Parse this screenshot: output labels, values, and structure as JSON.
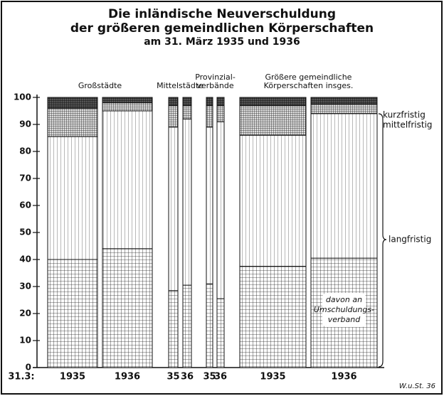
{
  "chart_data": {
    "type": "stacked_bar",
    "title": [
      "Die inländische Neuverschuldung",
      "der größeren gemeindlichen Körperschaften",
      "am 31. März 1935 und 1936"
    ],
    "x_prefix": "31.3:",
    "groups": [
      {
        "label": [
          "Großstädte"
        ],
        "categories": [
          "1935",
          "1936"
        ]
      },
      {
        "label": [
          "Mittelstädte"
        ],
        "categories": [
          "35",
          "36"
        ]
      },
      {
        "label": [
          "Provinzial-",
          "verbände"
        ],
        "categories": [
          "35",
          "36"
        ]
      },
      {
        "label": [
          "Größere gemeindliche",
          "Körperschaften insges."
        ],
        "categories": [
          "1935",
          "1936"
        ]
      }
    ],
    "series": [
      {
        "pattern": "grid",
        "values": [
          40,
          44,
          28.5,
          30.5,
          31,
          25.5,
          37.5,
          40.5
        ]
      },
      {
        "name": "langfristig",
        "pattern": "vertical",
        "values": [
          45.5,
          51,
          60.5,
          61.5,
          58,
          65.5,
          48.5,
          53.5
        ]
      },
      {
        "name": "mittelfristig",
        "pattern": "cross",
        "values": [
          10.5,
          3,
          8,
          5,
          8,
          6,
          11,
          3.5
        ]
      },
      {
        "name": "kurzfristig",
        "pattern": "dark",
        "values": [
          4,
          2,
          3,
          3,
          3,
          3,
          3,
          2.5
        ]
      }
    ],
    "annotation": [
      "davon an",
      "Umschuldungs-",
      "verband"
    ],
    "ylim": [
      0,
      100
    ],
    "yticks": [
      0,
      10,
      20,
      30,
      40,
      50,
      60,
      70,
      80,
      90,
      100
    ],
    "credit": "W.u.St. 36"
  }
}
